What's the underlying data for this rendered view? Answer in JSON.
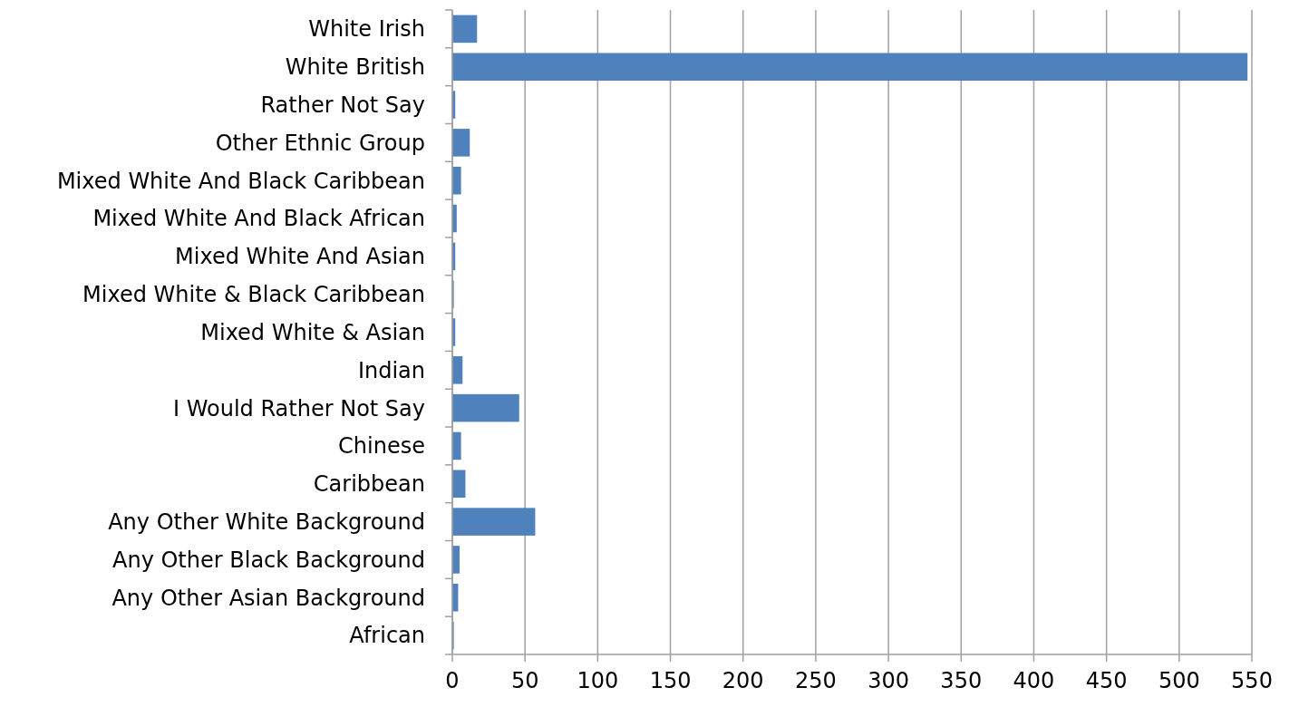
{
  "chart_data": {
    "type": "bar",
    "orientation": "horizontal",
    "categories": [
      "White Irish",
      "White British",
      "Rather Not Say",
      "Other Ethnic Group",
      "Mixed White And Black Caribbean",
      "Mixed White And Black African",
      "Mixed White And Asian",
      "Mixed White & Black Caribbean",
      "Mixed White & Asian",
      "Indian",
      "I Would Rather Not Say",
      "Chinese",
      "Caribbean",
      "Any Other White Background",
      "Any Other Black Background",
      "Any Other Asian Background",
      "African"
    ],
    "values": [
      17,
      547,
      2,
      12,
      6,
      3,
      2,
      1,
      2,
      7,
      46,
      6,
      9,
      57,
      5,
      4,
      1
    ],
    "color": "#4f81bd",
    "xlim": [
      0,
      550
    ],
    "xticks": [
      0,
      50,
      100,
      150,
      200,
      250,
      300,
      350,
      400,
      450,
      500,
      550
    ],
    "grid": "x"
  }
}
